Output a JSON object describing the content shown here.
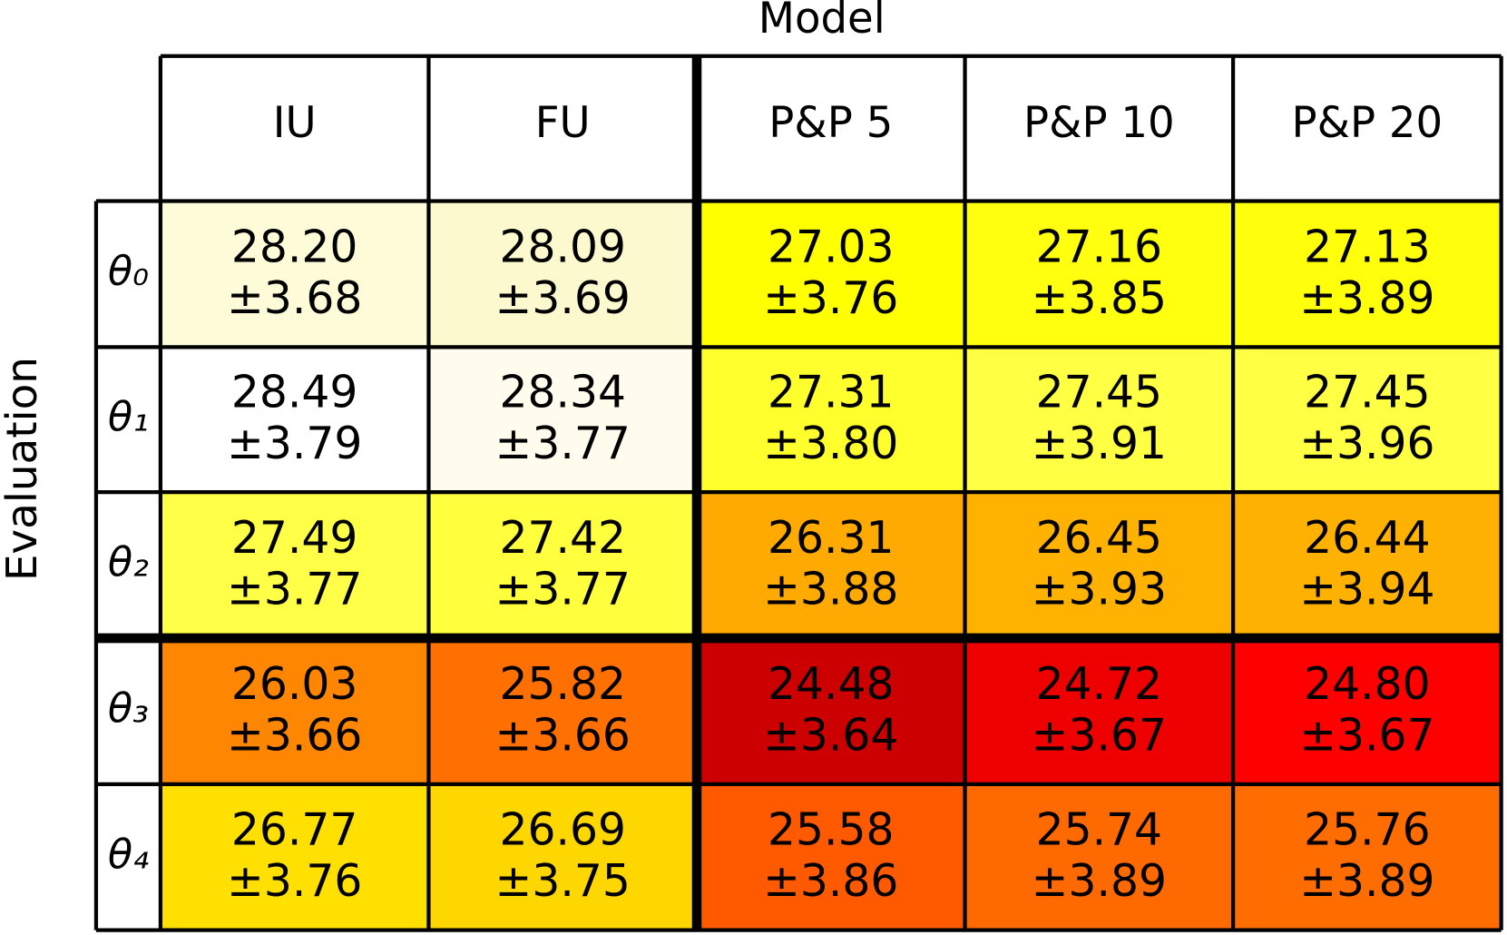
{
  "title": "Model",
  "row_axis_label": "Evaluation",
  "columns": [
    "IU",
    "FU",
    "P&P 5",
    "P&P 10",
    "P&P 20"
  ],
  "rows": [
    {
      "label": "θ₀",
      "cells": [
        {
          "mean": "28.20",
          "std": "±3.68",
          "color": "#fefcd8"
        },
        {
          "mean": "28.09",
          "std": "±3.69",
          "color": "#fdf9cf"
        },
        {
          "mean": "27.03",
          "std": "±3.76",
          "color": "#ffff00"
        },
        {
          "mean": "27.16",
          "std": "±3.85",
          "color": "#ffff10"
        },
        {
          "mean": "27.13",
          "std": "±3.89",
          "color": "#ffff0c"
        }
      ]
    },
    {
      "label": "θ₁",
      "cells": [
        {
          "mean": "28.49",
          "std": "±3.79",
          "color": "#ffffff"
        },
        {
          "mean": "28.34",
          "std": "±3.77",
          "color": "#fffcee"
        },
        {
          "mean": "27.31",
          "std": "±3.80",
          "color": "#ffff2e"
        },
        {
          "mean": "27.45",
          "std": "±3.91",
          "color": "#ffff44"
        },
        {
          "mean": "27.45",
          "std": "±3.96",
          "color": "#ffff44"
        }
      ]
    },
    {
      "label": "θ₂",
      "cells": [
        {
          "mean": "27.49",
          "std": "±3.77",
          "color": "#ffff48"
        },
        {
          "mean": "27.42",
          "std": "±3.77",
          "color": "#ffff3e"
        },
        {
          "mean": "26.31",
          "std": "±3.88",
          "color": "#ffaa00"
        },
        {
          "mean": "26.45",
          "std": "±3.93",
          "color": "#ffb200"
        },
        {
          "mean": "26.44",
          "std": "±3.94",
          "color": "#ffb100"
        }
      ]
    },
    {
      "label": "θ₃",
      "cells": [
        {
          "mean": "26.03",
          "std": "±3.66",
          "color": "#ff8600"
        },
        {
          "mean": "25.82",
          "std": "±3.66",
          "color": "#ff7000"
        },
        {
          "mean": "24.48",
          "std": "±3.64",
          "color": "#cc0000"
        },
        {
          "mean": "24.72",
          "std": "±3.67",
          "color": "#ee0000"
        },
        {
          "mean": "24.80",
          "std": "±3.67",
          "color": "#ff0000"
        }
      ]
    },
    {
      "label": "θ₄",
      "cells": [
        {
          "mean": "26.77",
          "std": "±3.76",
          "color": "#ffe000"
        },
        {
          "mean": "26.69",
          "std": "±3.75",
          "color": "#ffd700"
        },
        {
          "mean": "25.58",
          "std": "±3.86",
          "color": "#ff5a00"
        },
        {
          "mean": "25.74",
          "std": "±3.89",
          "color": "#ff6a00"
        },
        {
          "mean": "25.76",
          "std": "±3.89",
          "color": "#ff6c00"
        }
      ]
    }
  ]
}
